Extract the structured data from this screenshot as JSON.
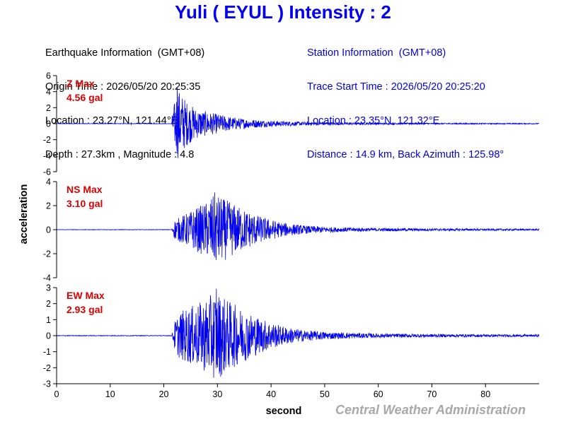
{
  "title": "Yuli ( EYUL ) Intensity : 2",
  "earthquake_info": {
    "heading": "Earthquake Information  (GMT+08)",
    "origin_time": "Origin Time : 2026/05/20 20:25:35",
    "location": "Location : 23.27°N, 121.44°E",
    "depth_magnitude": "Depth : 27.3km , Magnitude : 4.8"
  },
  "station_info": {
    "heading": "Station Information  (GMT+08)",
    "trace_start": "Trace Start Time : 2026/05/20 20:25:20",
    "location": "Location : 23.35°N, 121.32°E",
    "distance_azimuth": "Distance : 14.9 km, Back Azimuth : 125.98°"
  },
  "credit": "Central Weather Administration",
  "colors": {
    "title": "#0000ee",
    "trace": "#0000ee",
    "max_label": "#dd0000",
    "credit": "#a8a8a8"
  },
  "chart_data": {
    "type": "line",
    "xlabel": "second",
    "ylabel": "acceleration",
    "xlim": [
      0,
      90
    ],
    "xticks": [
      0,
      10,
      20,
      30,
      40,
      50,
      60,
      70,
      80
    ],
    "grid": false,
    "p_arrival_s": 21.5,
    "panels": [
      {
        "name": "Z",
        "max_label": "Z Max",
        "max_value": "4.56 gal",
        "ylim": [
          -6,
          6
        ],
        "yticks": [
          6,
          4,
          2,
          0,
          -2,
          -4,
          -6
        ],
        "peak": 4.56,
        "peak_time_s": 22.5,
        "envelope": [
          [
            0,
            0.03
          ],
          [
            21.4,
            0.03
          ],
          [
            21.7,
            1.6
          ],
          [
            22.5,
            4.5
          ],
          [
            23.2,
            3.9
          ],
          [
            24.5,
            2.6
          ],
          [
            26,
            1.9
          ],
          [
            28,
            1.5
          ],
          [
            30,
            1.2
          ],
          [
            33,
            0.8
          ],
          [
            36,
            0.55
          ],
          [
            40,
            0.38
          ],
          [
            45,
            0.25
          ],
          [
            52,
            0.16
          ],
          [
            60,
            0.11
          ],
          [
            70,
            0.09
          ],
          [
            80,
            0.07
          ],
          [
            90,
            0.06
          ]
        ]
      },
      {
        "name": "NS",
        "max_label": "NS Max",
        "max_value": "3.10 gal",
        "ylim": [
          -4,
          4
        ],
        "yticks": [
          4,
          2,
          0,
          -2,
          -4
        ],
        "peak": 3.1,
        "peak_time_s": 29.5,
        "envelope": [
          [
            0,
            0.02
          ],
          [
            21.5,
            0.02
          ],
          [
            22,
            0.8
          ],
          [
            24,
            1.3
          ],
          [
            26,
            1.8
          ],
          [
            28,
            2.3
          ],
          [
            29.5,
            3.0
          ],
          [
            32,
            2.4
          ],
          [
            35,
            1.7
          ],
          [
            38,
            1.1
          ],
          [
            42,
            0.6
          ],
          [
            46,
            0.35
          ],
          [
            52,
            0.2
          ],
          [
            60,
            0.13
          ],
          [
            70,
            0.1
          ],
          [
            80,
            0.08
          ],
          [
            90,
            0.07
          ]
        ]
      },
      {
        "name": "EW",
        "max_label": "EW Max",
        "max_value": "2.93 gal",
        "ylim": [
          -3,
          3
        ],
        "yticks": [
          3,
          2,
          1,
          0,
          -1,
          -2,
          -3
        ],
        "peak": 2.93,
        "peak_time_s": 29.8,
        "envelope": [
          [
            0,
            0.02
          ],
          [
            21.5,
            0.02
          ],
          [
            22,
            0.9
          ],
          [
            23,
            1.5
          ],
          [
            25,
            1.8
          ],
          [
            27,
            2.1
          ],
          [
            29.8,
            2.8
          ],
          [
            32,
            2.2
          ],
          [
            35,
            1.6
          ],
          [
            38,
            1.1
          ],
          [
            42,
            0.6
          ],
          [
            46,
            0.35
          ],
          [
            52,
            0.2
          ],
          [
            60,
            0.13
          ],
          [
            70,
            0.1
          ],
          [
            80,
            0.08
          ],
          [
            90,
            0.07
          ]
        ]
      }
    ]
  }
}
